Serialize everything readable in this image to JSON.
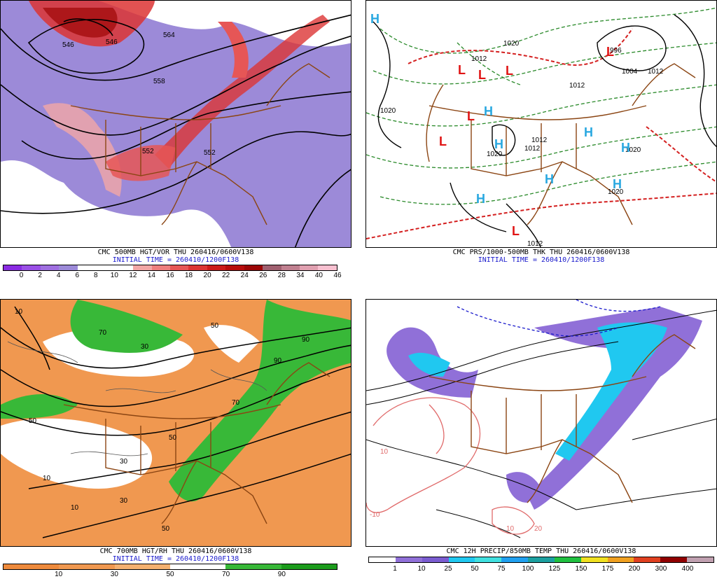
{
  "panels": {
    "vort500": {
      "caption_line1": "CMC 500MB HGT/VOR THU 260416/0600V138",
      "caption_line2": "INITIAL TIME = 260410/1200F138",
      "scale": {
        "colors": [
          "#8a2be2",
          "#9a50e6",
          "#9f6fe0",
          "#9c8ad8",
          "#ffffff",
          "#ffffff",
          "#ffffff",
          "#f2a6a6",
          "#ee7e7e",
          "#e65656",
          "#dc3434",
          "#cc1a1a",
          "#b80c0c",
          "#9c0606",
          "#a06070",
          "#c08090",
          "#e0a0b0",
          "#f8c0d0"
        ],
        "ticks": [
          "0",
          "2",
          "4",
          "6",
          "8",
          "10",
          "12",
          "14",
          "16",
          "18",
          "20",
          "22",
          "24",
          "26",
          "28",
          "34",
          "40",
          "46"
        ]
      },
      "labels": [
        "564",
        "546",
        "558",
        "552",
        "546",
        "552"
      ]
    },
    "mslp": {
      "caption_line1": "CMC PRS/1000-500MB THK THU 260416/0600V138",
      "caption_line2": "INITIAL TIME = 260410/1200F138",
      "pressure_labels": [
        "1020",
        "1012",
        "1020",
        "1004",
        "1012",
        "1012",
        "1020",
        "1012",
        "1020",
        "1020",
        "1012",
        "1012",
        "996"
      ],
      "centers": [
        {
          "type": "H",
          "color": "#29a8e0"
        },
        {
          "type": "H",
          "color": "#29a8e0"
        },
        {
          "type": "H",
          "color": "#29a8e0"
        },
        {
          "type": "H",
          "color": "#29a8e0"
        },
        {
          "type": "H",
          "color": "#29a8e0"
        },
        {
          "type": "H",
          "color": "#29a8e0"
        },
        {
          "type": "H",
          "color": "#29a8e0"
        },
        {
          "type": "H",
          "color": "#29a8e0"
        },
        {
          "type": "L",
          "color": "#e01414"
        },
        {
          "type": "L",
          "color": "#e01414"
        },
        {
          "type": "L",
          "color": "#e01414"
        },
        {
          "type": "L",
          "color": "#e01414"
        },
        {
          "type": "L",
          "color": "#e01414"
        },
        {
          "type": "L",
          "color": "#e01414"
        },
        {
          "type": "L",
          "color": "#e01414"
        }
      ]
    },
    "rh700": {
      "caption_line1": "CMC 700MB HGT/RH THU 260416/0600V138",
      "caption_line2": "INITIAL TIME = 260410/1200F138",
      "scale": {
        "colors": [
          "#ee8a3c",
          "#f09850",
          "#f4b070",
          "#ffffff",
          "#38b838",
          "#1c9c1c"
        ],
        "ticks": [
          "10",
          "30",
          "50",
          "70",
          "90"
        ]
      },
      "labels": [
        "10",
        "50",
        "30",
        "70",
        "90",
        "50",
        "30",
        "10",
        "50",
        "70",
        "90",
        "10",
        "30",
        "50"
      ]
    },
    "precip": {
      "caption_line1": "CMC 12H PRECIP/850MB TEMP THU 260416/0600V138",
      "scale": {
        "colors": [
          "#ffffff",
          "#9070d8",
          "#7a5cd0",
          "#20c8f0",
          "#40e0e0",
          "#20a0f0",
          "#1ca0a0",
          "#20c040",
          "#f0e020",
          "#f0a020",
          "#e04020",
          "#900000",
          "#c0a0b0"
        ],
        "ticks": [
          "1",
          "10",
          "25",
          "50",
          "75",
          "100",
          "125",
          "150",
          "175",
          "200",
          "300",
          "400"
        ]
      },
      "labels": [
        "10",
        "-10",
        "10",
        "20"
      ]
    }
  }
}
